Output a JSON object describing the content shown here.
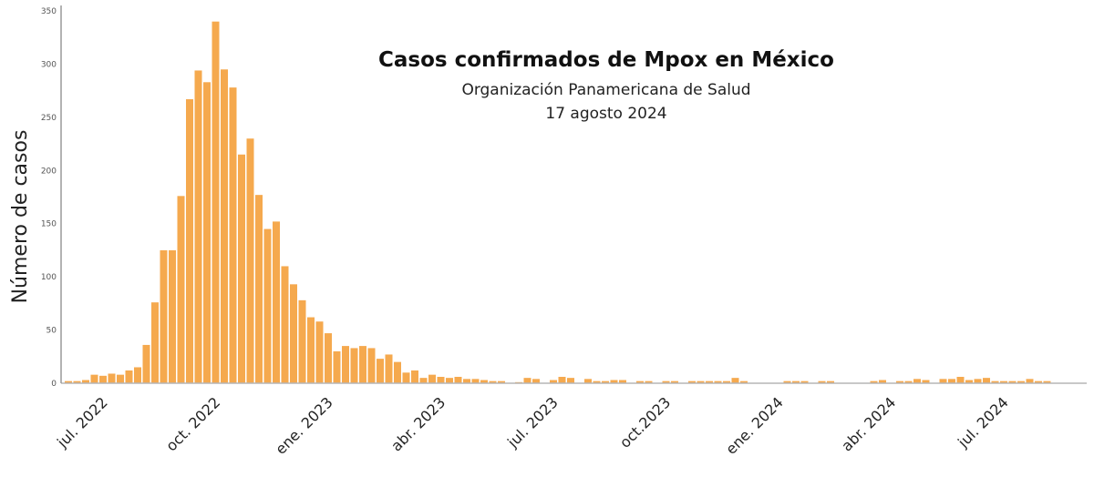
{
  "chart_data": {
    "type": "bar",
    "title": "Casos confirmados de Mpox en México",
    "subtitle": "Organización Panamericana de Salud",
    "date": "17 agosto 2024",
    "ylabel": "Número de casos",
    "xlabel": "",
    "ylim": [
      0,
      350
    ],
    "yticks": [
      0,
      50,
      100,
      150,
      200,
      250,
      300,
      350
    ],
    "bar_color": "#f5a94e",
    "grid": false,
    "x_tick_labels": [
      {
        "label": "jul. 2022",
        "week": 4
      },
      {
        "label": "oct. 2022",
        "week": 17
      },
      {
        "label": "ene. 2023",
        "week": 30
      },
      {
        "label": "abr. 2023",
        "week": 43
      },
      {
        "label": "jul. 2023",
        "week": 56
      },
      {
        "label": "oct.2023",
        "week": 69
      },
      {
        "label": "ene. 2024",
        "week": 82
      },
      {
        "label": "abr. 2024",
        "week": 95
      },
      {
        "label": "jul. 2024",
        "week": 108
      }
    ],
    "values": [
      2,
      2,
      3,
      8,
      7,
      9,
      8,
      12,
      15,
      36,
      76,
      125,
      125,
      176,
      267,
      294,
      283,
      340,
      295,
      278,
      215,
      230,
      177,
      145,
      152,
      110,
      93,
      78,
      62,
      58,
      47,
      30,
      35,
      33,
      35,
      33,
      23,
      27,
      20,
      10,
      12,
      5,
      8,
      6,
      5,
      6,
      4,
      4,
      3,
      2,
      2,
      0,
      1,
      5,
      4,
      0,
      3,
      6,
      5,
      0,
      4,
      2,
      2,
      3,
      3,
      0,
      2,
      2,
      0,
      2,
      2,
      0,
      2,
      2,
      2,
      2,
      2,
      5,
      2,
      0,
      0,
      0,
      0,
      2,
      2,
      2,
      0,
      2,
      2,
      0,
      0,
      0,
      0,
      2,
      3,
      0,
      2,
      2,
      4,
      3,
      0,
      4,
      4,
      6,
      3,
      4,
      5,
      2,
      2,
      2,
      2,
      4,
      2,
      2
    ]
  }
}
